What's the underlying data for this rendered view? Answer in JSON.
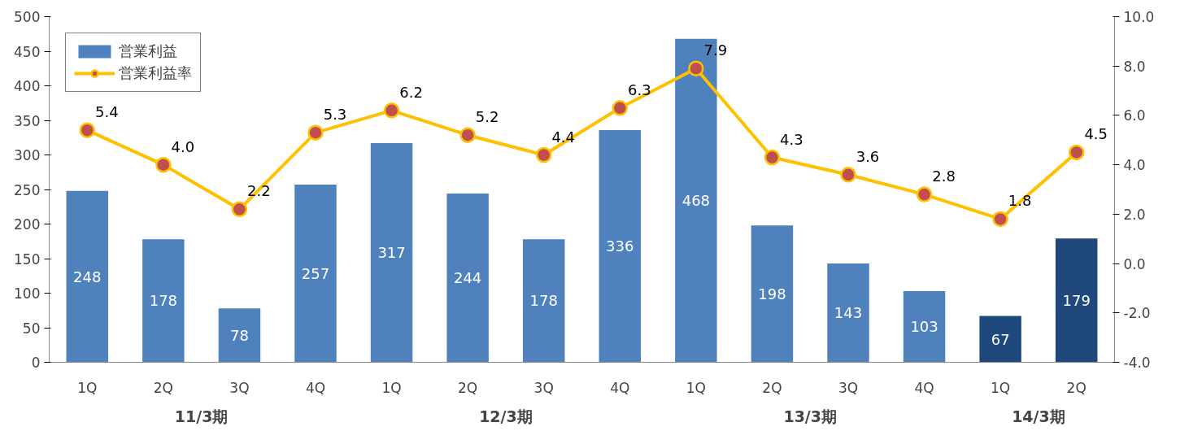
{
  "chart_data": {
    "type": "bar",
    "categories": [
      "1Q",
      "2Q",
      "3Q",
      "4Q",
      "1Q",
      "2Q",
      "3Q",
      "4Q",
      "1Q",
      "2Q",
      "3Q",
      "4Q",
      "1Q",
      "2Q"
    ],
    "series": [
      {
        "name": "営業利益",
        "colors": [
          "#4f81bd",
          "#4f81bd",
          "#4f81bd",
          "#4f81bd",
          "#4f81bd",
          "#4f81bd",
          "#4f81bd",
          "#4f81bd",
          "#4f81bd",
          "#4f81bd",
          "#4f81bd",
          "#4f81bd",
          "#1f497d",
          "#1f497d"
        ],
        "values": [
          248,
          178,
          78,
          257,
          317,
          244,
          178,
          336,
          468,
          198,
          143,
          103,
          67,
          179
        ]
      },
      {
        "name": "営業利益率",
        "type": "line",
        "axis": "y2",
        "color": "#ffc000",
        "marker": "circle",
        "values": [
          5.4,
          4.0,
          2.2,
          5.3,
          6.2,
          5.2,
          4.4,
          6.3,
          7.9,
          4.3,
          3.6,
          2.8,
          1.8,
          4.5
        ],
        "value_labels": [
          "5.4",
          "4.0",
          "2.2",
          "5.3",
          "6.2",
          "5.2",
          "4.4",
          "6.3",
          "7.9",
          "4.3",
          "3.6",
          "2.8",
          "1.8",
          "4.5"
        ]
      }
    ],
    "ylim": [
      0,
      500
    ],
    "yticks": [
      0,
      50,
      100,
      150,
      200,
      250,
      300,
      350,
      400,
      450,
      500
    ],
    "y2lim": [
      -4,
      10
    ],
    "y2ticks": [
      {
        "value": -4,
        "label": "-4.0"
      },
      {
        "value": -2,
        "label": "-2.0"
      },
      {
        "value": 0,
        "label": "0.0"
      },
      {
        "value": 2,
        "label": "2.0"
      },
      {
        "value": 4,
        "label": "4.0"
      },
      {
        "value": 6,
        "label": "6.0"
      },
      {
        "value": 8,
        "label": "8.0"
      },
      {
        "value": 10,
        "label": "10.0"
      }
    ],
    "annotations": [
      "11/3期",
      "12/3期",
      "13/3期",
      "14/3期"
    ],
    "data_labels": true,
    "legend": "top left",
    "grid": false,
    "line_style": "solid"
  }
}
